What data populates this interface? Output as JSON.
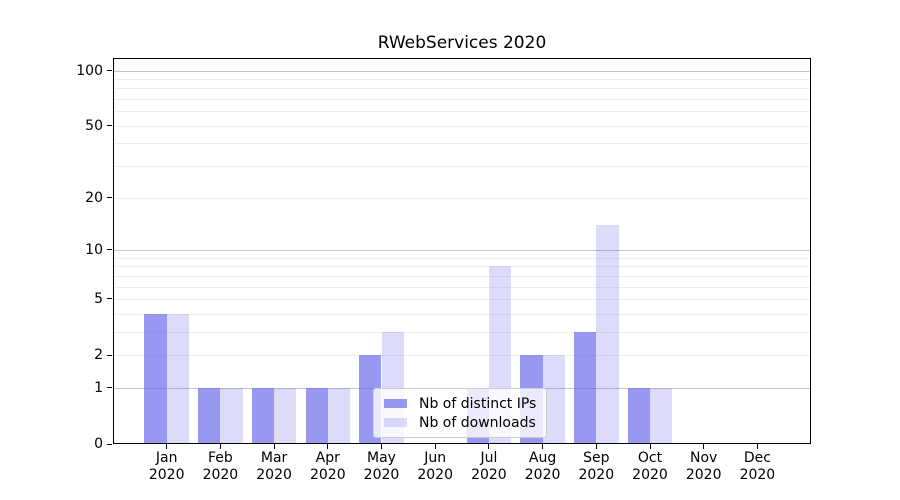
{
  "title": "RWebServices 2020",
  "chart_data": {
    "type": "bar",
    "title": "RWebServices 2020",
    "categories": [
      "Jan",
      "Feb",
      "Mar",
      "Apr",
      "May",
      "Jun",
      "Jul",
      "Aug",
      "Sep",
      "Oct",
      "Nov",
      "Dec"
    ],
    "x_year": "2020",
    "series": [
      {
        "name": "Nb of distinct IPs",
        "color": "rgba(97,97,234,0.65)",
        "values": [
          4,
          1,
          1,
          1,
          2,
          0,
          1,
          2,
          3,
          1,
          0,
          0
        ]
      },
      {
        "name": "Nb of downloads",
        "color": "rgba(97,97,234,0.22)",
        "values": [
          4,
          1,
          1,
          1,
          3,
          0,
          8,
          2,
          14,
          1,
          0,
          0
        ]
      }
    ],
    "xlabel": "",
    "ylabel": "",
    "y_scale": "log1p",
    "ylim": [
      0,
      116
    ],
    "y_ticks": [
      0,
      1,
      2,
      5,
      10,
      20,
      50,
      100
    ],
    "y_major_gridlines": [
      1,
      10,
      100
    ],
    "y_minor_gridlines": [
      2,
      3,
      4,
      5,
      6,
      7,
      8,
      9,
      20,
      30,
      40,
      50,
      60,
      70,
      80,
      90
    ],
    "grid": "on",
    "legend_position": "lower center"
  },
  "legend": {
    "items": [
      {
        "label": "Nb of distinct IPs"
      },
      {
        "label": "Nb of downloads"
      }
    ]
  },
  "colors": {
    "bar_distinct_ips": "rgba(97,97,234,0.65)",
    "bar_downloads": "rgba(97,97,234,0.22)",
    "grid_major": "#c6c6c6",
    "grid_minor": "#ededed",
    "axis": "#000000",
    "background": "#ffffff",
    "legend_border": "#cccccc"
  }
}
